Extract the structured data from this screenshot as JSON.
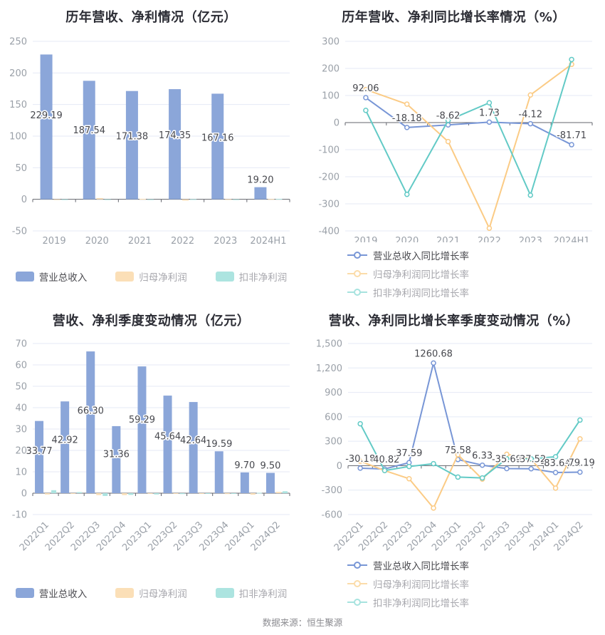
{
  "footer": {
    "source_label": "数据来源：恒生聚源"
  },
  "colors": {
    "grid": "#e4eaf6",
    "axis": "#63656d",
    "tick_text": "#9aa0a8",
    "data_label": "#47484e",
    "title": "#2b2c34",
    "footer_text": "#8b8b90",
    "background": "#ffffff",
    "marker_fill": "#ffffff",
    "bar_blue": "#8ba6d9",
    "bar_orange": "#fbdfb7",
    "bar_teal": "#ace4e0",
    "line_blue": "#7896d6",
    "line_orange": "#fbcb85",
    "line_teal": "#62cac6"
  },
  "chart_data": [
    {
      "id": "annual-revenue-profit",
      "type": "bar",
      "title": "历年营收、净利情况（亿元）",
      "categories": [
        "2019",
        "2020",
        "2021",
        "2022",
        "2023",
        "2024H1"
      ],
      "ylim": [
        -50,
        250
      ],
      "yticks": [
        "250",
        "200",
        "150",
        "100",
        "50",
        "0",
        "-50"
      ],
      "grid": true,
      "legend_position": "bottom-center",
      "series": [
        {
          "name": "营业总收入",
          "color": "#8ba6d9",
          "legend_color": "#8ba6d9",
          "legend_text_color": "#4a4a4f",
          "values": [
            229.19,
            187.54,
            171.38,
            174.35,
            167.16,
            19.2
          ],
          "data_labels": [
            "229.19",
            "187.54",
            "171.38",
            "174.35",
            "167.16",
            "19.20"
          ]
        },
        {
          "name": "归母净利润",
          "color": "#fbdfb7",
          "legend_color": "#fbdfb7",
          "legend_text_color": "#a8a8ae",
          "values": [
            -0.8,
            2.0,
            0.8,
            -2.0,
            0.2,
            0.5
          ]
        },
        {
          "name": "扣非净利润",
          "color": "#ace4e0",
          "legend_color": "#ace4e0",
          "legend_text_color": "#a8a8ae",
          "values": [
            -0.3,
            -1.0,
            -1.0,
            0.2,
            -1.0,
            0.8
          ]
        }
      ]
    },
    {
      "id": "annual-growth-rate",
      "type": "line",
      "title": "历年营收、净利同比增长率情况（%）",
      "categories": [
        "2019",
        "2020",
        "2021",
        "2022",
        "2023",
        "2024H1"
      ],
      "ylim": [
        -400,
        300
      ],
      "yticks": [
        "300",
        "200",
        "100",
        "0",
        "-100",
        "-200",
        "-300",
        "-400"
      ],
      "grid": true,
      "legend_position": "bottom-left",
      "series": [
        {
          "name": "营业总收入同比增长率",
          "color": "#7896d6",
          "legend_color": "#7896d6",
          "legend_text_color": "#4a4a4f",
          "values": [
            92.06,
            -18.18,
            -8.62,
            1.73,
            -4.12,
            -81.71
          ],
          "data_labels": [
            "92.06",
            "-18.18",
            "-8.62",
            "1.73",
            "-4.12",
            "-81.71"
          ]
        },
        {
          "name": "归母净利润同比增长率",
          "color": "#fbcb85",
          "legend_color": "#fbdcaa",
          "legend_text_color": "#a8a8ae",
          "values": [
            122,
            68,
            -70,
            -390,
            102,
            215
          ]
        },
        {
          "name": "扣非净利润同比增长率",
          "color": "#62cac6",
          "legend_color": "#a7e3df",
          "legend_text_color": "#a8a8ae",
          "values": [
            45,
            -265,
            8,
            73,
            -268,
            233
          ]
        }
      ]
    },
    {
      "id": "quarterly-revenue-profit",
      "type": "bar",
      "title": "营收、净利季度变动情况（亿元）",
      "categories": [
        "2022Q1",
        "2022Q2",
        "2022Q3",
        "2022Q4",
        "2023Q1",
        "2023Q2",
        "2023Q3",
        "2023Q4",
        "2024Q1",
        "2024Q2"
      ],
      "ylim": [
        -10,
        70
      ],
      "yticks": [
        "70",
        "60",
        "50",
        "40",
        "30",
        "20",
        "10",
        "0",
        "-10"
      ],
      "grid": true,
      "rotate_x_labels": true,
      "legend_position": "bottom-center",
      "series": [
        {
          "name": "营业总收入",
          "color": "#8ba6d9",
          "legend_color": "#8ba6d9",
          "legend_text_color": "#4a4a4f",
          "values": [
            33.77,
            42.92,
            66.3,
            31.36,
            59.29,
            45.64,
            42.64,
            19.59,
            9.7,
            9.5
          ],
          "data_labels": [
            "33.77",
            "42.92",
            "66.30",
            "31.36",
            "59.29",
            "45.64",
            "42.64",
            "19.59",
            "9.70",
            "9.50"
          ]
        },
        {
          "name": "归母净利润",
          "color": "#fbdfb7",
          "legend_color": "#fbdfb7",
          "legend_text_color": "#a8a8ae",
          "values": [
            -0.6,
            -0.3,
            -0.9,
            -0.9,
            -0.2,
            -0.3,
            -0.2,
            -0.4,
            -0.7,
            0.6
          ]
        },
        {
          "name": "扣非净利润",
          "color": "#ace4e0",
          "legend_color": "#ace4e0",
          "legend_text_color": "#a8a8ae",
          "values": [
            1.4,
            0.5,
            -1.3,
            -0.8,
            -0.6,
            -0.4,
            -0.3,
            -0.1,
            0.2,
            0.9
          ]
        }
      ]
    },
    {
      "id": "quarterly-growth-rate",
      "type": "line",
      "title": "营收、净利同比增长率季度变动情况（%）",
      "categories": [
        "2022Q1",
        "2022Q2",
        "2022Q3",
        "2022Q4",
        "2023Q1",
        "2023Q2",
        "2023Q3",
        "2023Q4",
        "2024Q1",
        "2024Q2"
      ],
      "ylim": [
        -600,
        1500
      ],
      "yticks": [
        "1,500",
        "1,200",
        "900",
        "600",
        "300",
        "0",
        "-300",
        "-600"
      ],
      "grid": true,
      "rotate_x_labels": true,
      "legend_position": "bottom-left",
      "series": [
        {
          "name": "营业总收入同比增长率",
          "color": "#7896d6",
          "legend_color": "#7896d6",
          "legend_text_color": "#4a4a4f",
          "values": [
            -30.18,
            -40.82,
            37.59,
            1260.68,
            75.58,
            6.33,
            -35.69,
            -37.52,
            -83.64,
            -79.19
          ],
          "data_labels": [
            "-30.18",
            "-40.82",
            "37.59",
            "1260.68",
            "75.58",
            "6.33",
            "-35.69",
            "-37.52",
            "-83.64",
            "-79.19"
          ]
        },
        {
          "name": "归母净利润同比增长率",
          "color": "#fbcb85",
          "legend_color": "#fbdcaa",
          "legend_text_color": "#a8a8ae",
          "values": [
            55,
            -60,
            -160,
            -520,
            135,
            -165,
            140,
            80,
            -275,
            330
          ]
        },
        {
          "name": "扣非净利润同比增长率",
          "color": "#62cac6",
          "legend_color": "#a7e3df",
          "legend_text_color": "#a8a8ae",
          "values": [
            515,
            -60,
            -10,
            25,
            -140,
            -150,
            85,
            85,
            110,
            560
          ]
        }
      ]
    }
  ]
}
